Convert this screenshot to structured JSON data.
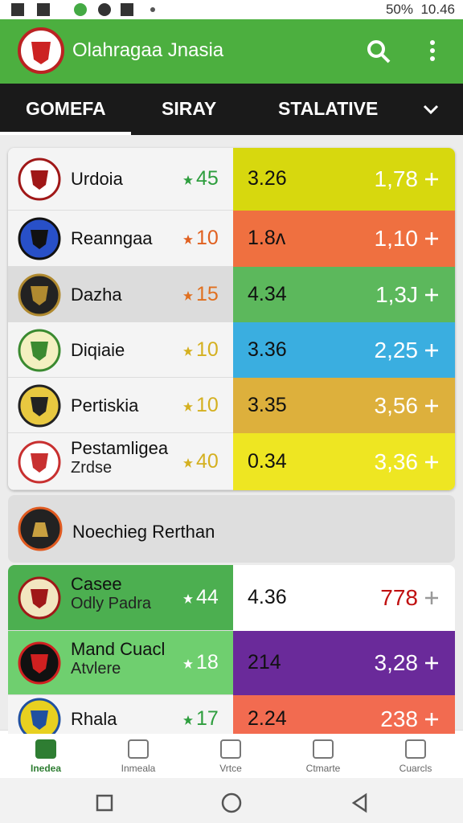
{
  "status": {
    "battery": "50%",
    "time": "10.46"
  },
  "header": {
    "title": "Olahragaa Jnasia"
  },
  "tabs": [
    "GOMEFA",
    "SIRAY",
    "STALATIVE"
  ],
  "list": [
    {
      "name": "Urdoia",
      "rank": "45",
      "odds": "3.26",
      "value": "1,78"
    },
    {
      "name": "Reanngaa",
      "rank": "10",
      "odds": "1.8ʌ",
      "value": "1,10"
    },
    {
      "name": "Dazha",
      "rank": "15",
      "odds": "4.34",
      "value": "1,3J"
    },
    {
      "name": "Diqiaie",
      "rank": "10",
      "odds": "3.36",
      "value": "2,25"
    },
    {
      "name": "Pertiskia",
      "rank": "10",
      "odds": "3.35",
      "value": "3,56"
    },
    {
      "name": "Pestamligea",
      "sub": "Zrdse",
      "rank": "40",
      "odds": "0.34",
      "value": "3,36"
    }
  ],
  "section": {
    "title": "Noechieg Rerthan"
  },
  "list2": [
    {
      "name": "Casee",
      "sub": "Odly Padra",
      "rank": "44",
      "odds": "4.36",
      "value": "778"
    },
    {
      "name": "Mand Cuacl",
      "sub": "Atvlere",
      "rank": "18",
      "odds": "214",
      "value": "3,28"
    },
    {
      "name": "Rhala",
      "rank": "17",
      "odds": "2.24",
      "value": "238"
    }
  ],
  "nav": [
    "Inedea",
    "Inmeala",
    "Vrtce",
    "Ctmarte",
    "Cuarcls"
  ]
}
